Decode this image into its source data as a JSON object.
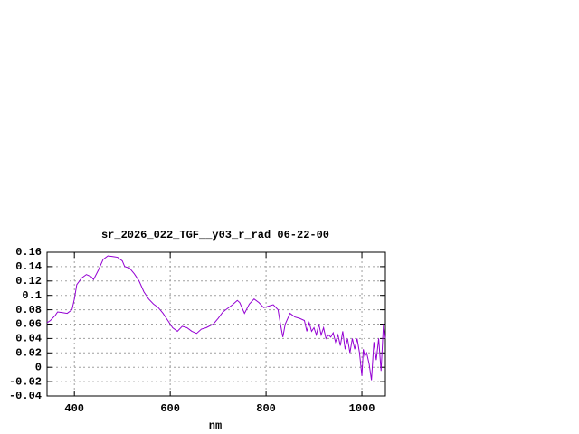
{
  "chart_data": {
    "type": "line",
    "title": "sr_2026_022_TGF__y03_r_rad 06-22-00",
    "x_label": "nm",
    "x": [
      343,
      350,
      360,
      365,
      375,
      385,
      395,
      400,
      405,
      415,
      425,
      435,
      440,
      450,
      460,
      470,
      480,
      490,
      500,
      505,
      515,
      525,
      535,
      545,
      555,
      565,
      575,
      585,
      595,
      605,
      615,
      625,
      635,
      645,
      655,
      665,
      675,
      690,
      700,
      710,
      720,
      730,
      740,
      745,
      755,
      765,
      775,
      785,
      795,
      805,
      815,
      825,
      830,
      835,
      840,
      850,
      860,
      870,
      880,
      885,
      890,
      895,
      900,
      905,
      910,
      915,
      920,
      925,
      930,
      935,
      940,
      945,
      950,
      955,
      960,
      965,
      970,
      975,
      980,
      985,
      990,
      995,
      1000,
      1003,
      1006,
      1010,
      1015,
      1020,
      1025,
      1030,
      1035,
      1040,
      1045,
      1049
    ],
    "series": [
      {
        "color": "#9400d3",
        "values": [
          0.062,
          0.065,
          0.072,
          0.077,
          0.076,
          0.075,
          0.08,
          0.095,
          0.115,
          0.124,
          0.129,
          0.126,
          0.122,
          0.135,
          0.15,
          0.155,
          0.154,
          0.153,
          0.148,
          0.14,
          0.138,
          0.13,
          0.12,
          0.105,
          0.095,
          0.088,
          0.083,
          0.075,
          0.065,
          0.055,
          0.05,
          0.057,
          0.055,
          0.05,
          0.047,
          0.053,
          0.055,
          0.06,
          0.068,
          0.077,
          0.082,
          0.087,
          0.093,
          0.09,
          0.075,
          0.088,
          0.095,
          0.09,
          0.083,
          0.085,
          0.087,
          0.08,
          0.06,
          0.042,
          0.06,
          0.075,
          0.07,
          0.068,
          0.065,
          0.05,
          0.062,
          0.05,
          0.055,
          0.045,
          0.06,
          0.045,
          0.055,
          0.04,
          0.045,
          0.042,
          0.048,
          0.035,
          0.045,
          0.03,
          0.05,
          0.025,
          0.04,
          0.02,
          0.04,
          0.025,
          0.04,
          0.02,
          -0.012,
          0.025,
          0.015,
          0.02,
          0.005,
          -0.018,
          0.035,
          0.01,
          0.04,
          -0.005,
          0.06,
          0.04
        ]
      }
    ],
    "xlim": [
      343,
      1049
    ],
    "ylim": [
      -0.04,
      0.16
    ],
    "xticks": [
      400,
      600,
      800,
      1000
    ],
    "yticks": [
      -0.04,
      -0.02,
      0,
      0.02,
      0.04,
      0.06,
      0.08,
      0.1,
      0.12,
      0.14,
      0.16
    ],
    "grid": true
  }
}
